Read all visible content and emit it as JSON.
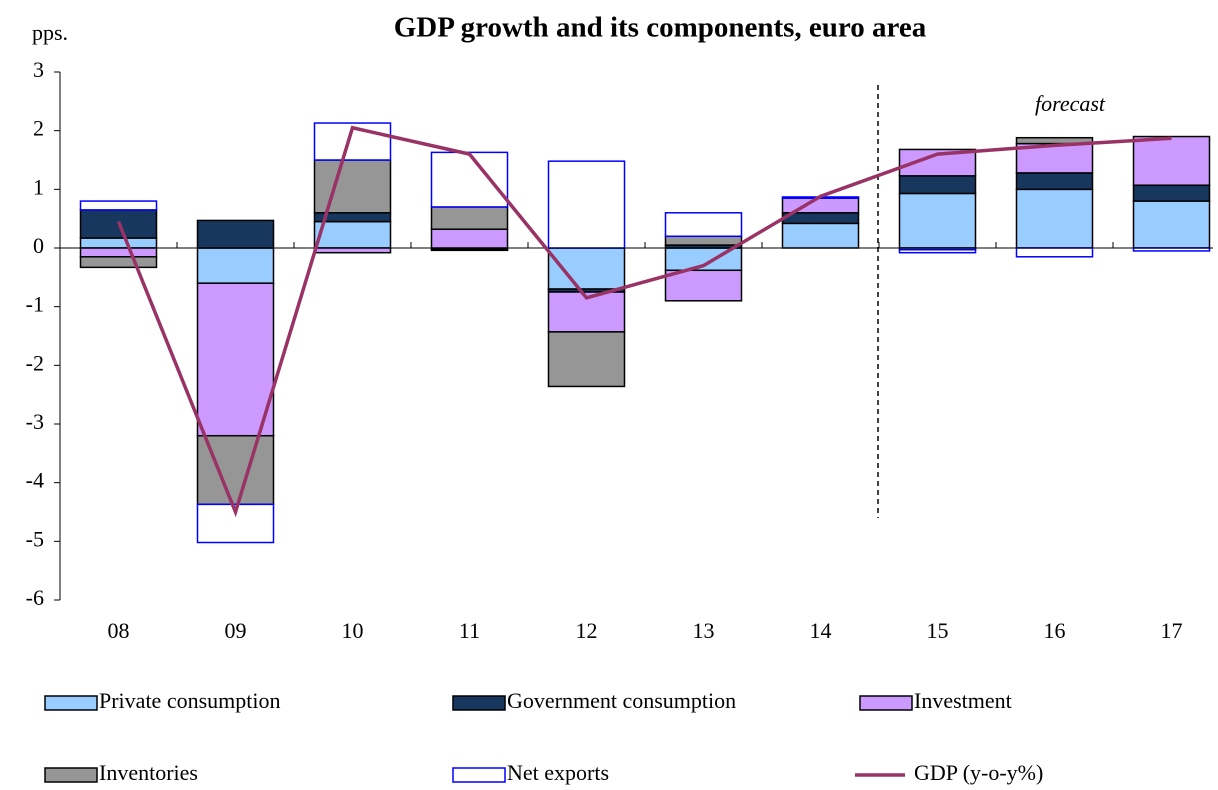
{
  "chart_data": {
    "type": "bar",
    "stacked": true,
    "title": "GDP growth and its components, euro area",
    "ylabel": "pps.",
    "annotation": "forecast",
    "categories": [
      "08",
      "09",
      "10",
      "11",
      "12",
      "13",
      "14",
      "15",
      "16",
      "17"
    ],
    "series": [
      {
        "name": "Private consumption",
        "color": "#99ccff",
        "edgecolor": "#000000",
        "values": [
          0.17,
          -0.6,
          0.45,
          -0.02,
          -0.7,
          -0.38,
          0.42,
          0.93,
          1.0,
          0.8
        ]
      },
      {
        "name": "Government consumption",
        "color": "#17375e",
        "edgecolor": "#000000",
        "values": [
          0.48,
          0.47,
          0.15,
          -0.02,
          -0.05,
          0.05,
          0.18,
          0.3,
          0.28,
          0.27
        ]
      },
      {
        "name": "Investment",
        "color": "#cc99ff",
        "edgecolor": "#000000",
        "values": [
          -0.15,
          -2.6,
          -0.08,
          0.32,
          -0.68,
          -0.52,
          0.25,
          0.45,
          0.5,
          0.83
        ]
      },
      {
        "name": "Inventories",
        "color": "#969696",
        "edgecolor": "#000000",
        "values": [
          -0.18,
          -1.17,
          0.9,
          0.38,
          -0.93,
          0.15,
          0,
          -0.03,
          0.1,
          0
        ]
      },
      {
        "name": "Net exports",
        "color": "#ffffff",
        "edgecolor": "#0000ff",
        "values": [
          0.15,
          -0.65,
          0.63,
          0.93,
          1.48,
          0.4,
          0.02,
          -0.05,
          -0.15,
          -0.05
        ]
      },
      {
        "name": "GDP (y-o-y%)",
        "type": "line",
        "color": "#993366",
        "values": [
          0.45,
          -4.5,
          2.05,
          1.6,
          -0.85,
          -0.3,
          0.88,
          1.6,
          1.75,
          1.87
        ]
      }
    ],
    "ylim": [
      -6,
      3
    ],
    "yticks": [
      -6,
      -5,
      -4,
      -3,
      -2,
      -1,
      0,
      1,
      2,
      3
    ]
  }
}
